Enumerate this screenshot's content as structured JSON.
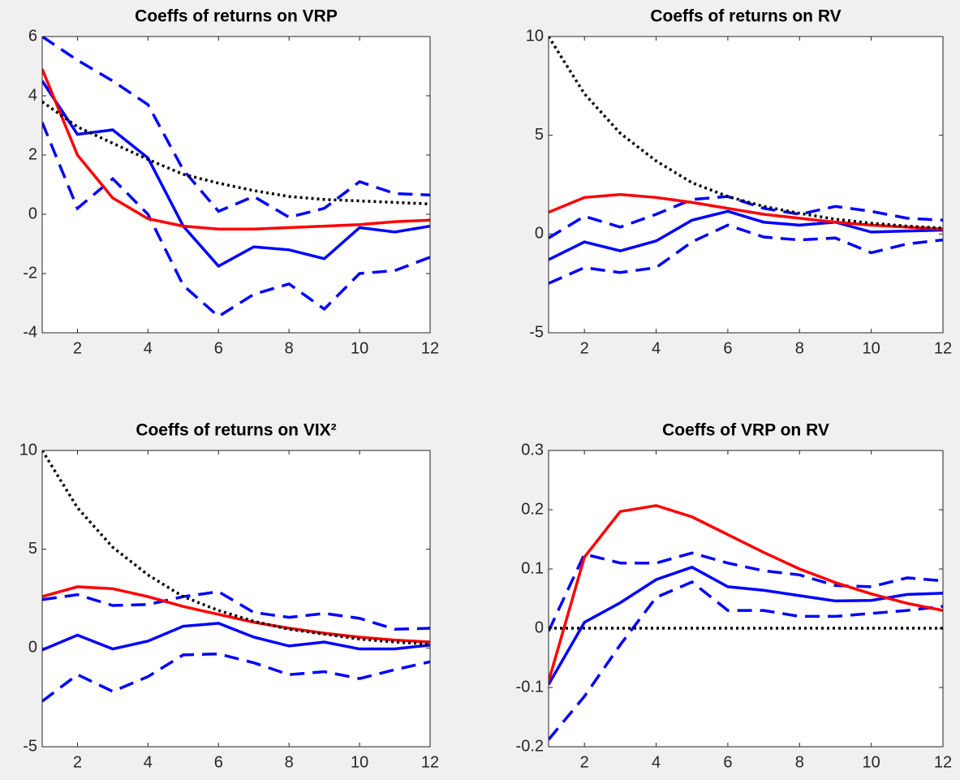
{
  "chart_data": [
    {
      "type": "line",
      "title": "Coeffs of returns on VRP",
      "x": [
        1,
        2,
        3,
        4,
        5,
        6,
        7,
        8,
        9,
        10,
        11,
        12
      ],
      "xlim": [
        1,
        12
      ],
      "xticks": [
        2,
        4,
        6,
        8,
        10,
        12
      ],
      "ylim": [
        -4,
        6
      ],
      "yticks": [
        -4,
        -2,
        0,
        2,
        4,
        6
      ],
      "series": [
        {
          "color": "#0000ff",
          "style": "dashed",
          "values": [
            6.0,
            5.2,
            4.5,
            3.7,
            1.5,
            0.1,
            0.6,
            -0.1,
            0.2,
            1.1,
            0.7,
            0.65
          ]
        },
        {
          "color": "#0000ff",
          "style": "solid",
          "values": [
            4.5,
            2.7,
            2.85,
            1.9,
            -0.4,
            -1.75,
            -1.1,
            -1.2,
            -1.5,
            -0.45,
            -0.6,
            -0.4
          ]
        },
        {
          "color": "#0000ff",
          "style": "dashed",
          "values": [
            3.1,
            0.2,
            1.2,
            0.0,
            -2.4,
            -3.45,
            -2.7,
            -2.35,
            -3.2,
            -2.0,
            -1.9,
            -1.45
          ]
        },
        {
          "color": "#ff0000",
          "style": "solid",
          "values": [
            4.9,
            2.0,
            0.55,
            -0.15,
            -0.4,
            -0.5,
            -0.5,
            -0.45,
            -0.4,
            -0.35,
            -0.25,
            -0.2
          ]
        },
        {
          "color": "#000000",
          "style": "dotted",
          "values": [
            3.8,
            2.95,
            2.4,
            1.85,
            1.35,
            1.05,
            0.8,
            0.6,
            0.5,
            0.45,
            0.4,
            0.35
          ]
        }
      ]
    },
    {
      "type": "line",
      "title": "Coeffs of returns on RV",
      "x": [
        1,
        2,
        3,
        4,
        5,
        6,
        7,
        8,
        9,
        10,
        11,
        12
      ],
      "xlim": [
        1,
        12
      ],
      "xticks": [
        2,
        4,
        6,
        8,
        10,
        12
      ],
      "ylim": [
        -5,
        10
      ],
      "yticks": [
        -5,
        0,
        5,
        10
      ],
      "series": [
        {
          "color": "#0000ff",
          "style": "dashed",
          "values": [
            -0.2,
            0.9,
            0.35,
            1.0,
            1.75,
            1.9,
            1.3,
            1.0,
            1.4,
            1.15,
            0.8,
            0.7
          ]
        },
        {
          "color": "#0000ff",
          "style": "solid",
          "values": [
            -1.3,
            -0.4,
            -0.85,
            -0.35,
            0.7,
            1.15,
            0.6,
            0.45,
            0.6,
            0.1,
            0.15,
            0.2
          ]
        },
        {
          "color": "#0000ff",
          "style": "dashed",
          "values": [
            -2.5,
            -1.7,
            -1.95,
            -1.7,
            -0.4,
            0.45,
            -0.15,
            -0.3,
            -0.2,
            -0.95,
            -0.5,
            -0.3
          ]
        },
        {
          "color": "#ff0000",
          "style": "solid",
          "values": [
            1.1,
            1.85,
            2.0,
            1.85,
            1.6,
            1.3,
            1.0,
            0.8,
            0.6,
            0.45,
            0.35,
            0.25
          ]
        },
        {
          "color": "#000000",
          "style": "dotted",
          "values": [
            10,
            7.1,
            5.1,
            3.7,
            2.6,
            1.9,
            1.4,
            1.05,
            0.75,
            0.55,
            0.4,
            0.3
          ]
        }
      ]
    },
    {
      "type": "line",
      "title": "Coeffs of returns on VIX²",
      "x": [
        1,
        2,
        3,
        4,
        5,
        6,
        7,
        8,
        9,
        10,
        11,
        12
      ],
      "xlim": [
        1,
        12
      ],
      "xticks": [
        2,
        4,
        6,
        8,
        10,
        12
      ],
      "ylim": [
        -5,
        10
      ],
      "yticks": [
        -5,
        0,
        5,
        10
      ],
      "series": [
        {
          "color": "#0000ff",
          "style": "dashed",
          "values": [
            2.45,
            2.7,
            2.15,
            2.2,
            2.6,
            2.85,
            1.8,
            1.55,
            1.75,
            1.5,
            0.95,
            1.0
          ]
        },
        {
          "color": "#0000ff",
          "style": "solid",
          "values": [
            -0.1,
            0.65,
            -0.05,
            0.35,
            1.1,
            1.25,
            0.55,
            0.1,
            0.3,
            -0.05,
            -0.05,
            0.15
          ]
        },
        {
          "color": "#0000ff",
          "style": "dashed",
          "values": [
            -2.7,
            -1.35,
            -2.2,
            -1.45,
            -0.35,
            -0.3,
            -0.75,
            -1.35,
            -1.2,
            -1.55,
            -1.1,
            -0.7
          ]
        },
        {
          "color": "#ff0000",
          "style": "solid",
          "values": [
            2.6,
            3.1,
            3.0,
            2.6,
            2.1,
            1.7,
            1.3,
            1.0,
            0.75,
            0.55,
            0.4,
            0.3
          ]
        },
        {
          "color": "#000000",
          "style": "dotted",
          "values": [
            10,
            7.1,
            5.1,
            3.7,
            2.6,
            1.9,
            1.35,
            0.95,
            0.7,
            0.45,
            0.3,
            0.2
          ]
        }
      ]
    },
    {
      "type": "line",
      "title": "Coeffs of VRP on RV",
      "x": [
        1,
        2,
        3,
        4,
        5,
        6,
        7,
        8,
        9,
        10,
        11,
        12
      ],
      "xlim": [
        1,
        12
      ],
      "xticks": [
        2,
        4,
        6,
        8,
        10,
        12
      ],
      "ylim": [
        -0.2,
        0.3
      ],
      "yticks": [
        -0.2,
        -0.1,
        0,
        0.1,
        0.2,
        0.3
      ],
      "series": [
        {
          "color": "#0000ff",
          "style": "dashed",
          "values": [
            -0.005,
            0.125,
            0.11,
            0.11,
            0.127,
            0.11,
            0.097,
            0.09,
            0.072,
            0.07,
            0.085,
            0.08
          ]
        },
        {
          "color": "#0000ff",
          "style": "solid",
          "values": [
            -0.095,
            0.01,
            0.043,
            0.082,
            0.103,
            0.07,
            0.064,
            0.055,
            0.046,
            0.047,
            0.057,
            0.059
          ]
        },
        {
          "color": "#0000ff",
          "style": "dashed",
          "values": [
            -0.188,
            -0.115,
            -0.028,
            0.052,
            0.078,
            0.03,
            0.03,
            0.02,
            0.02,
            0.025,
            0.03,
            0.037
          ]
        },
        {
          "color": "#ff0000",
          "style": "solid",
          "values": [
            -0.09,
            0.12,
            0.197,
            0.207,
            0.188,
            0.158,
            0.128,
            0.1,
            0.077,
            0.058,
            0.042,
            0.03
          ]
        },
        {
          "color": "#000000",
          "style": "dotted",
          "values": [
            0,
            0,
            0,
            0,
            0,
            0,
            0,
            0,
            0,
            0,
            0,
            0
          ]
        }
      ]
    }
  ]
}
